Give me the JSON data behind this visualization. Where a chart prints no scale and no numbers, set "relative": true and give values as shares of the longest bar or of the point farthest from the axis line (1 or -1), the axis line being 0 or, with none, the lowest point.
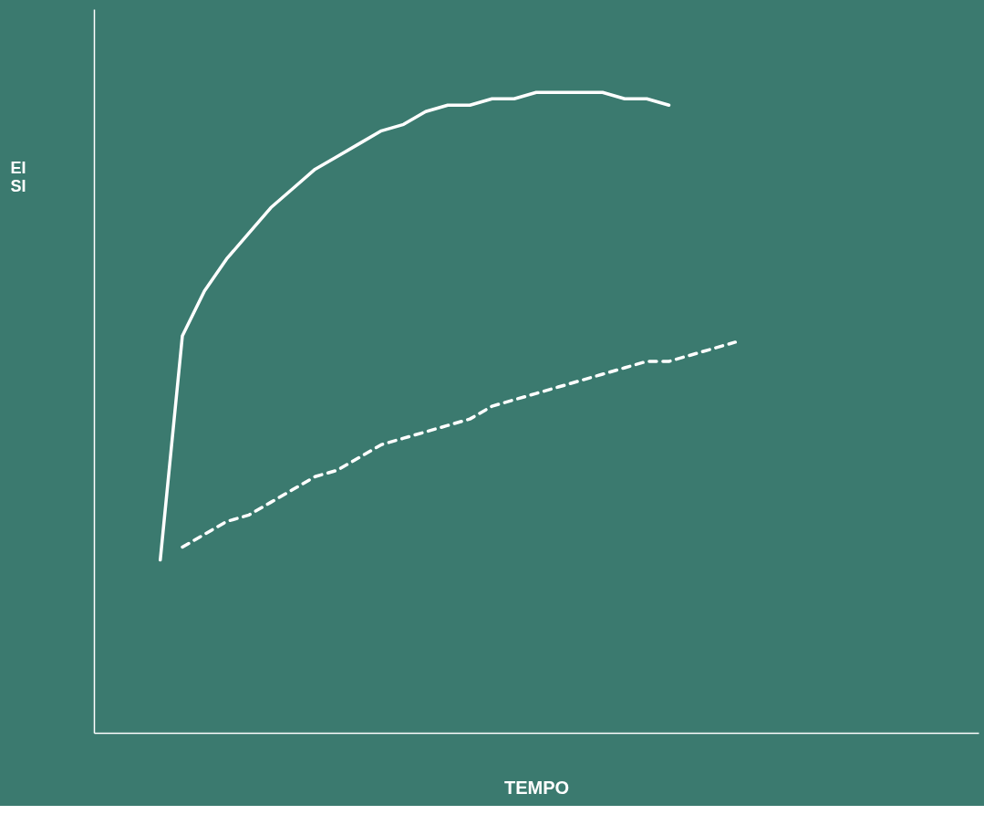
{
  "chart_data": {
    "type": "line",
    "relative": true,
    "xlabel": "TEMPO",
    "ylabel": "EI\nSI",
    "tick_labels": false,
    "grid": false,
    "marker": "none",
    "categories": [
      null,
      null,
      null,
      null,
      null,
      null,
      null,
      null,
      null,
      null,
      null,
      null,
      null,
      null,
      null,
      null,
      null,
      null,
      null,
      null,
      null,
      null,
      null,
      null,
      null,
      null,
      null,
      null,
      null,
      null,
      null,
      null,
      null,
      null,
      null,
      null,
      null,
      null,
      null,
      null,
      null
    ],
    "series": [
      {
        "color": "#ffffff",
        "line_style": "solid",
        "values": [
          null,
          null,
          null,
          0.27,
          0.62,
          0.69,
          0.74,
          0.78,
          0.82,
          0.85,
          0.88,
          0.9,
          0.92,
          0.94,
          0.95,
          0.97,
          0.98,
          0.98,
          0.99,
          0.99,
          1.0,
          1.0,
          1.0,
          1.0,
          0.99,
          0.99,
          0.98,
          null,
          null,
          null,
          null,
          null,
          null,
          null,
          null,
          null,
          null,
          null,
          null,
          null,
          null
        ]
      },
      {
        "color": "#ffffff",
        "line_style": "dashed",
        "values": [
          null,
          null,
          null,
          null,
          0.29,
          0.31,
          0.33,
          0.34,
          0.36,
          0.38,
          0.4,
          0.41,
          0.43,
          0.45,
          0.46,
          0.47,
          0.48,
          0.49,
          0.51,
          0.52,
          0.53,
          0.54,
          0.55,
          0.56,
          0.57,
          0.58,
          0.58,
          0.59,
          0.6,
          0.61,
          null,
          null,
          null,
          null,
          null,
          null,
          null,
          null,
          null,
          null,
          null
        ]
      }
    ]
  }
}
